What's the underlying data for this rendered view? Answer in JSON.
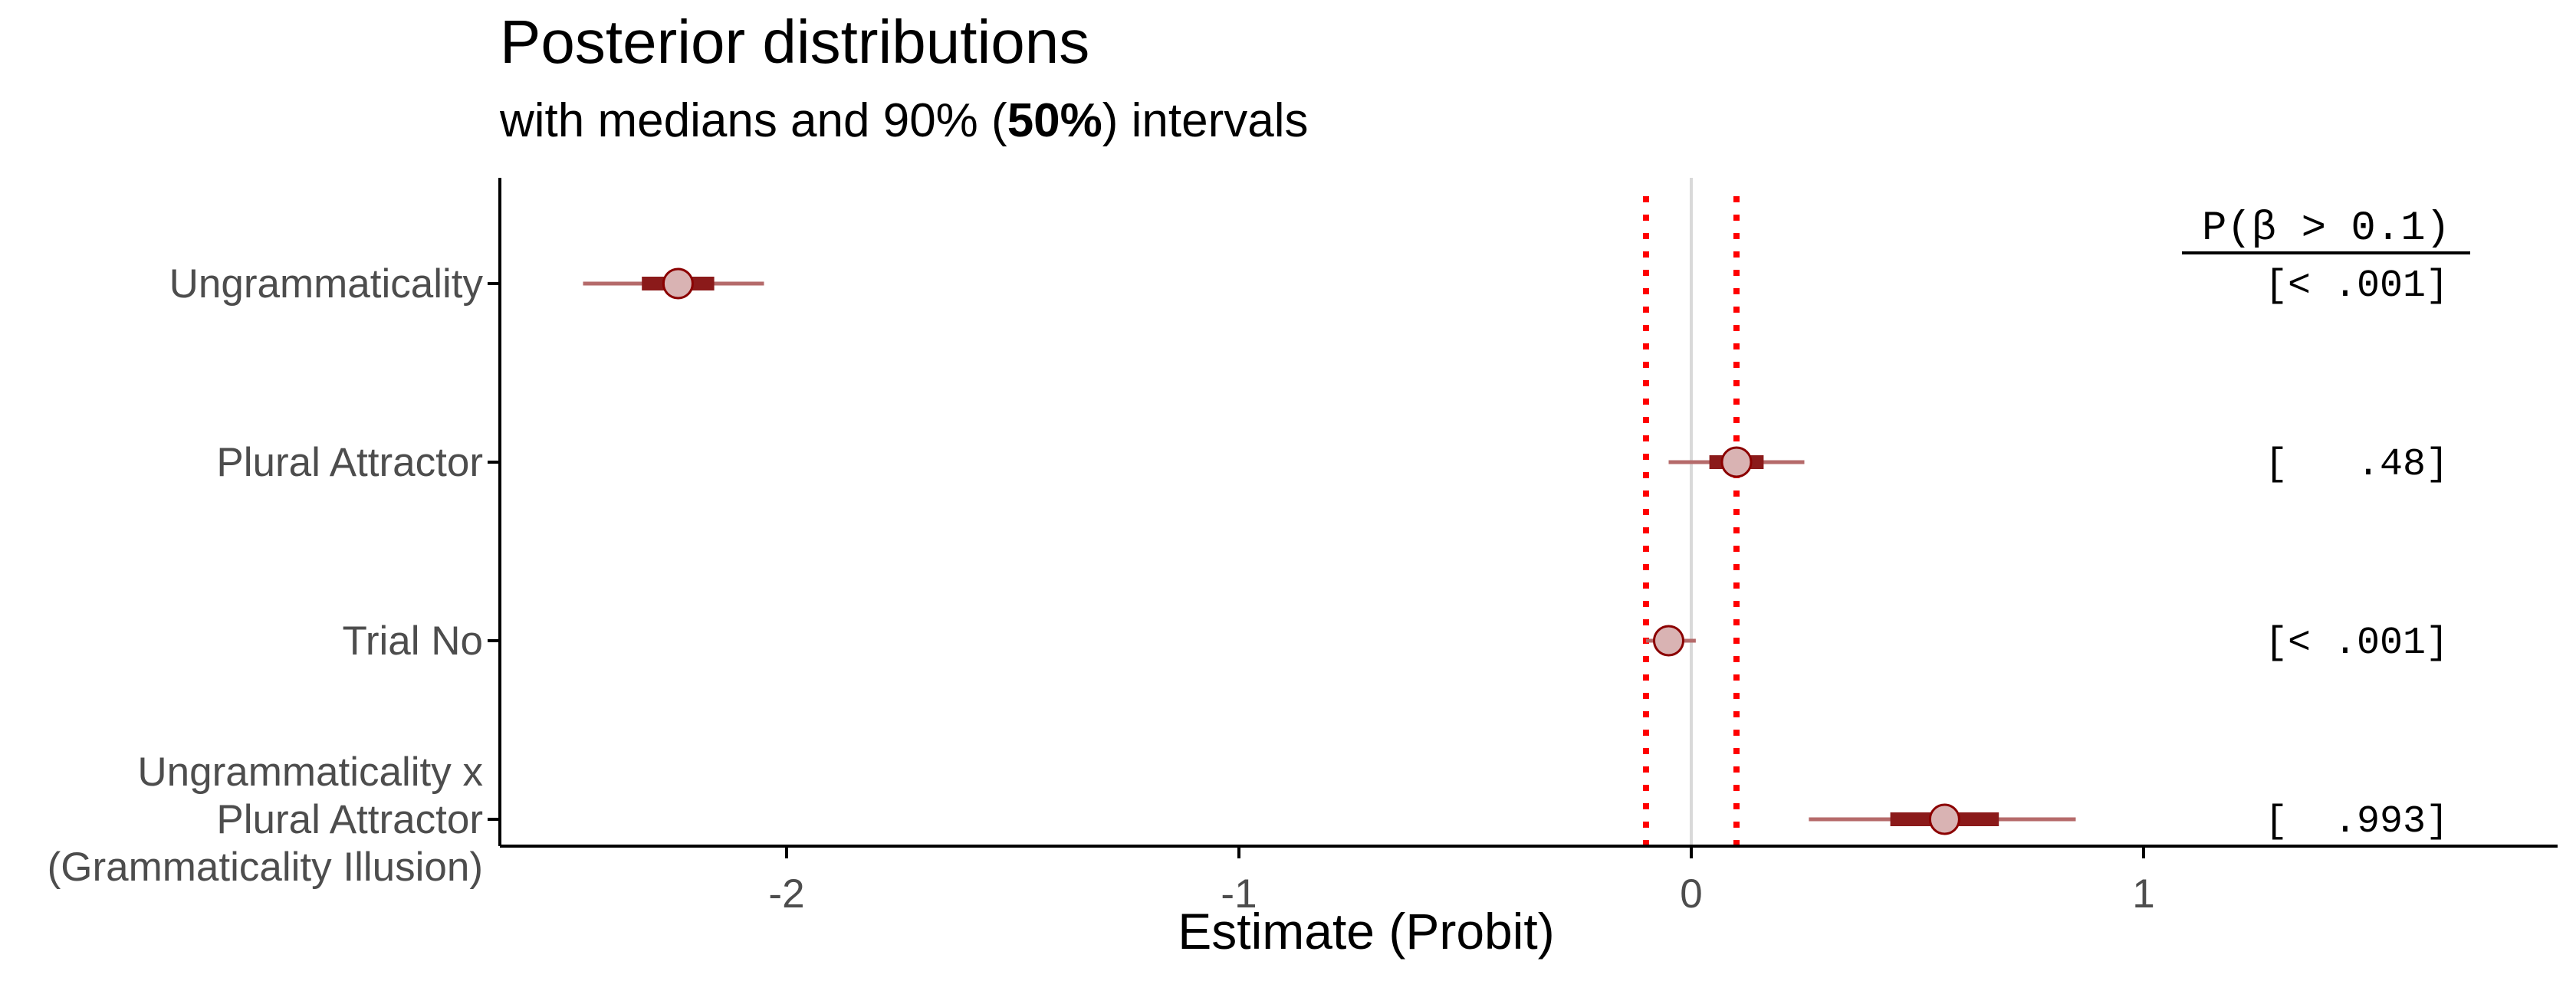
{
  "chart_data": {
    "type": "interval",
    "title": "Posterior distributions",
    "subtitle_prefix": "with medians and 90% (",
    "subtitle_bold": "50%",
    "subtitle_suffix": ") intervals",
    "xlabel": "Estimate (Probit)",
    "xlim": [
      -2.6,
      1.9
    ],
    "xticks": [
      -2,
      -1,
      0,
      1
    ],
    "xtick_labels": [
      "-2",
      "-1",
      "0",
      "1"
    ],
    "reference_line": 0,
    "rope_lines": [
      -0.1,
      0.1
    ],
    "grid": false,
    "prob_header": "P(β > 0.1)",
    "colors": {
      "outer_interval": "#b56a6a",
      "inner_interval": "#8b1a1a",
      "point_fill": "#d9b3b3",
      "point_stroke": "#8b0000",
      "rope": "#ff0000",
      "zero_line": "#d9d9d9",
      "axis": "#000000"
    },
    "rows": [
      {
        "label_lines": [
          "Ungrammaticality"
        ],
        "median": -2.24,
        "ci90": [
          -2.45,
          -2.05
        ],
        "ci50": [
          -2.32,
          -2.16
        ],
        "prob": "[< .001]"
      },
      {
        "label_lines": [
          "Plural Attractor"
        ],
        "median": 0.1,
        "ci90": [
          -0.05,
          0.25
        ],
        "ci50": [
          0.04,
          0.16
        ],
        "prob": "[   .48]"
      },
      {
        "label_lines": [
          "Trial No"
        ],
        "median": -0.05,
        "ci90": [
          -0.1,
          0.01
        ],
        "ci50": [
          -0.07,
          -0.03
        ],
        "prob": "[< .001]"
      },
      {
        "label_lines": [
          "Ungrammaticality x",
          "Plural Attractor",
          "(Grammaticality Illusion)"
        ],
        "median": 0.56,
        "ci90": [
          0.26,
          0.85
        ],
        "ci50": [
          0.44,
          0.68
        ],
        "prob": "[  .993]"
      }
    ]
  }
}
